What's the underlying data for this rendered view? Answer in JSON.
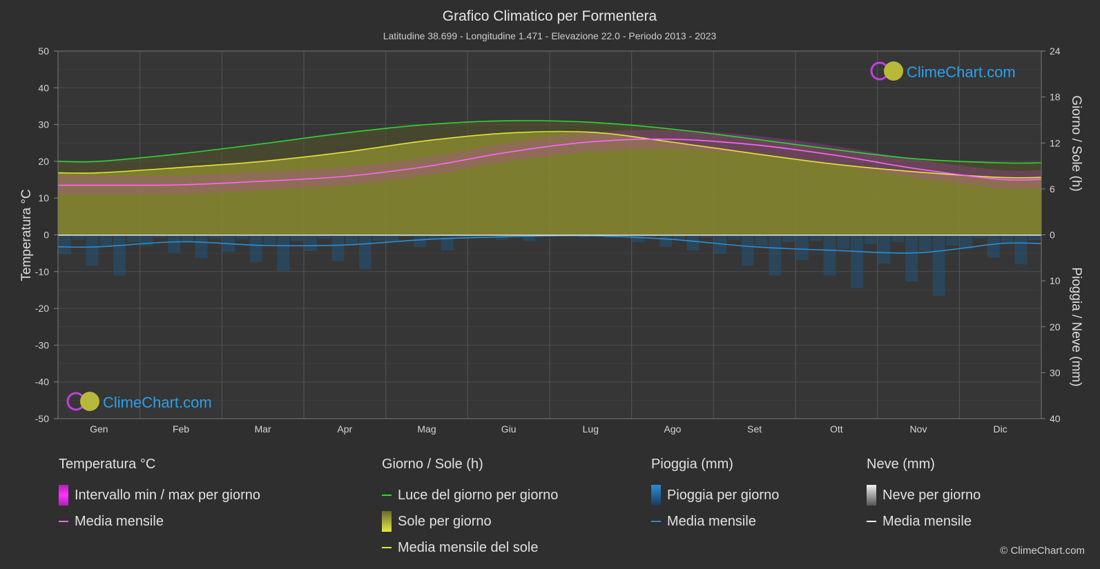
{
  "chart_data": {
    "type": "area",
    "title": "Grafico Climatico per Formentera",
    "subtitle": "Latitudine 38.699 - Longitudine 1.471 - Elevazione 22.0 - Periodo 2013 - 2023",
    "categories": [
      "Gen",
      "Feb",
      "Mar",
      "Apr",
      "Mag",
      "Giu",
      "Lug",
      "Ago",
      "Set",
      "Ott",
      "Nov",
      "Dic"
    ],
    "left_axis": {
      "label": "Temperatura °C",
      "ylim": [
        -50,
        50
      ],
      "ticks": [
        "50",
        "40",
        "30",
        "20",
        "10",
        "0",
        "-10",
        "-20",
        "-30",
        "-40",
        "-50"
      ]
    },
    "right_axis_top": {
      "label": "Giorno / Sole (h)",
      "ylim": [
        0,
        24
      ],
      "ticks": [
        "24",
        "18",
        "12",
        "6",
        "0"
      ]
    },
    "right_axis_bottom": {
      "label": "Pioggia / Neve (mm)",
      "ylim": [
        0,
        40
      ],
      "ticks": [
        "0",
        "10",
        "20",
        "30",
        "40"
      ]
    },
    "grid": true,
    "series": [
      {
        "name": "Luce del giorno per giorno",
        "axis": "sun_h",
        "color": "#33d433",
        "values": [
          9.6,
          10.6,
          11.9,
          13.3,
          14.4,
          14.9,
          14.7,
          13.8,
          12.5,
          11.1,
          9.9,
          9.4
        ]
      },
      {
        "name": "Media mensile del sole",
        "axis": "sun_h",
        "color": "#e5e53a",
        "values": [
          8.1,
          8.8,
          9.6,
          10.8,
          12.3,
          13.3,
          13.4,
          12.1,
          10.6,
          9.2,
          8.2,
          7.5
        ]
      },
      {
        "name": "Media mensile",
        "axis": "temp_c",
        "color": "#ff66ff",
        "values": [
          13.5,
          13.6,
          14.6,
          15.9,
          18.6,
          22.5,
          25.3,
          26.0,
          24.5,
          21.6,
          17.9,
          15.1
        ]
      },
      {
        "name": "Media mensile",
        "axis": "rain_mm",
        "color": "#2a8fd6",
        "values": [
          2.6,
          1.5,
          2.3,
          2.2,
          1.0,
          0.4,
          0.2,
          1.0,
          2.6,
          3.4,
          3.9,
          1.9
        ]
      }
    ],
    "legend_placement": "bottom"
  },
  "legend": {
    "temperature": {
      "title": "Temperatura °C",
      "range": "Intervallo min / max per giorno",
      "mean": "Media mensile",
      "range_color": "#e14ee1",
      "mean_color": "#ff66ff"
    },
    "sun": {
      "title": "Giorno / Sole (h)",
      "daylight": "Luce del giorno per giorno",
      "sun": "Sole per giorno",
      "mean": "Media mensile del sole",
      "daylight_color": "#33d433",
      "sun_color": "#c8c83a",
      "mean_color": "#e5e53a"
    },
    "rain": {
      "title": "Pioggia (mm)",
      "rain": "Pioggia per giorno",
      "mean": "Media mensile",
      "rain_color": "#2a8fd6",
      "mean_color": "#2a8fd6"
    },
    "snow": {
      "title": "Neve (mm)",
      "snow": "Neve per giorno",
      "mean": "Media mensile",
      "snow_color": "#d0d0d0",
      "mean_color": "#ffffff"
    }
  },
  "watermark": "ClimeChart.com",
  "copyright": "© ClimeChart.com"
}
